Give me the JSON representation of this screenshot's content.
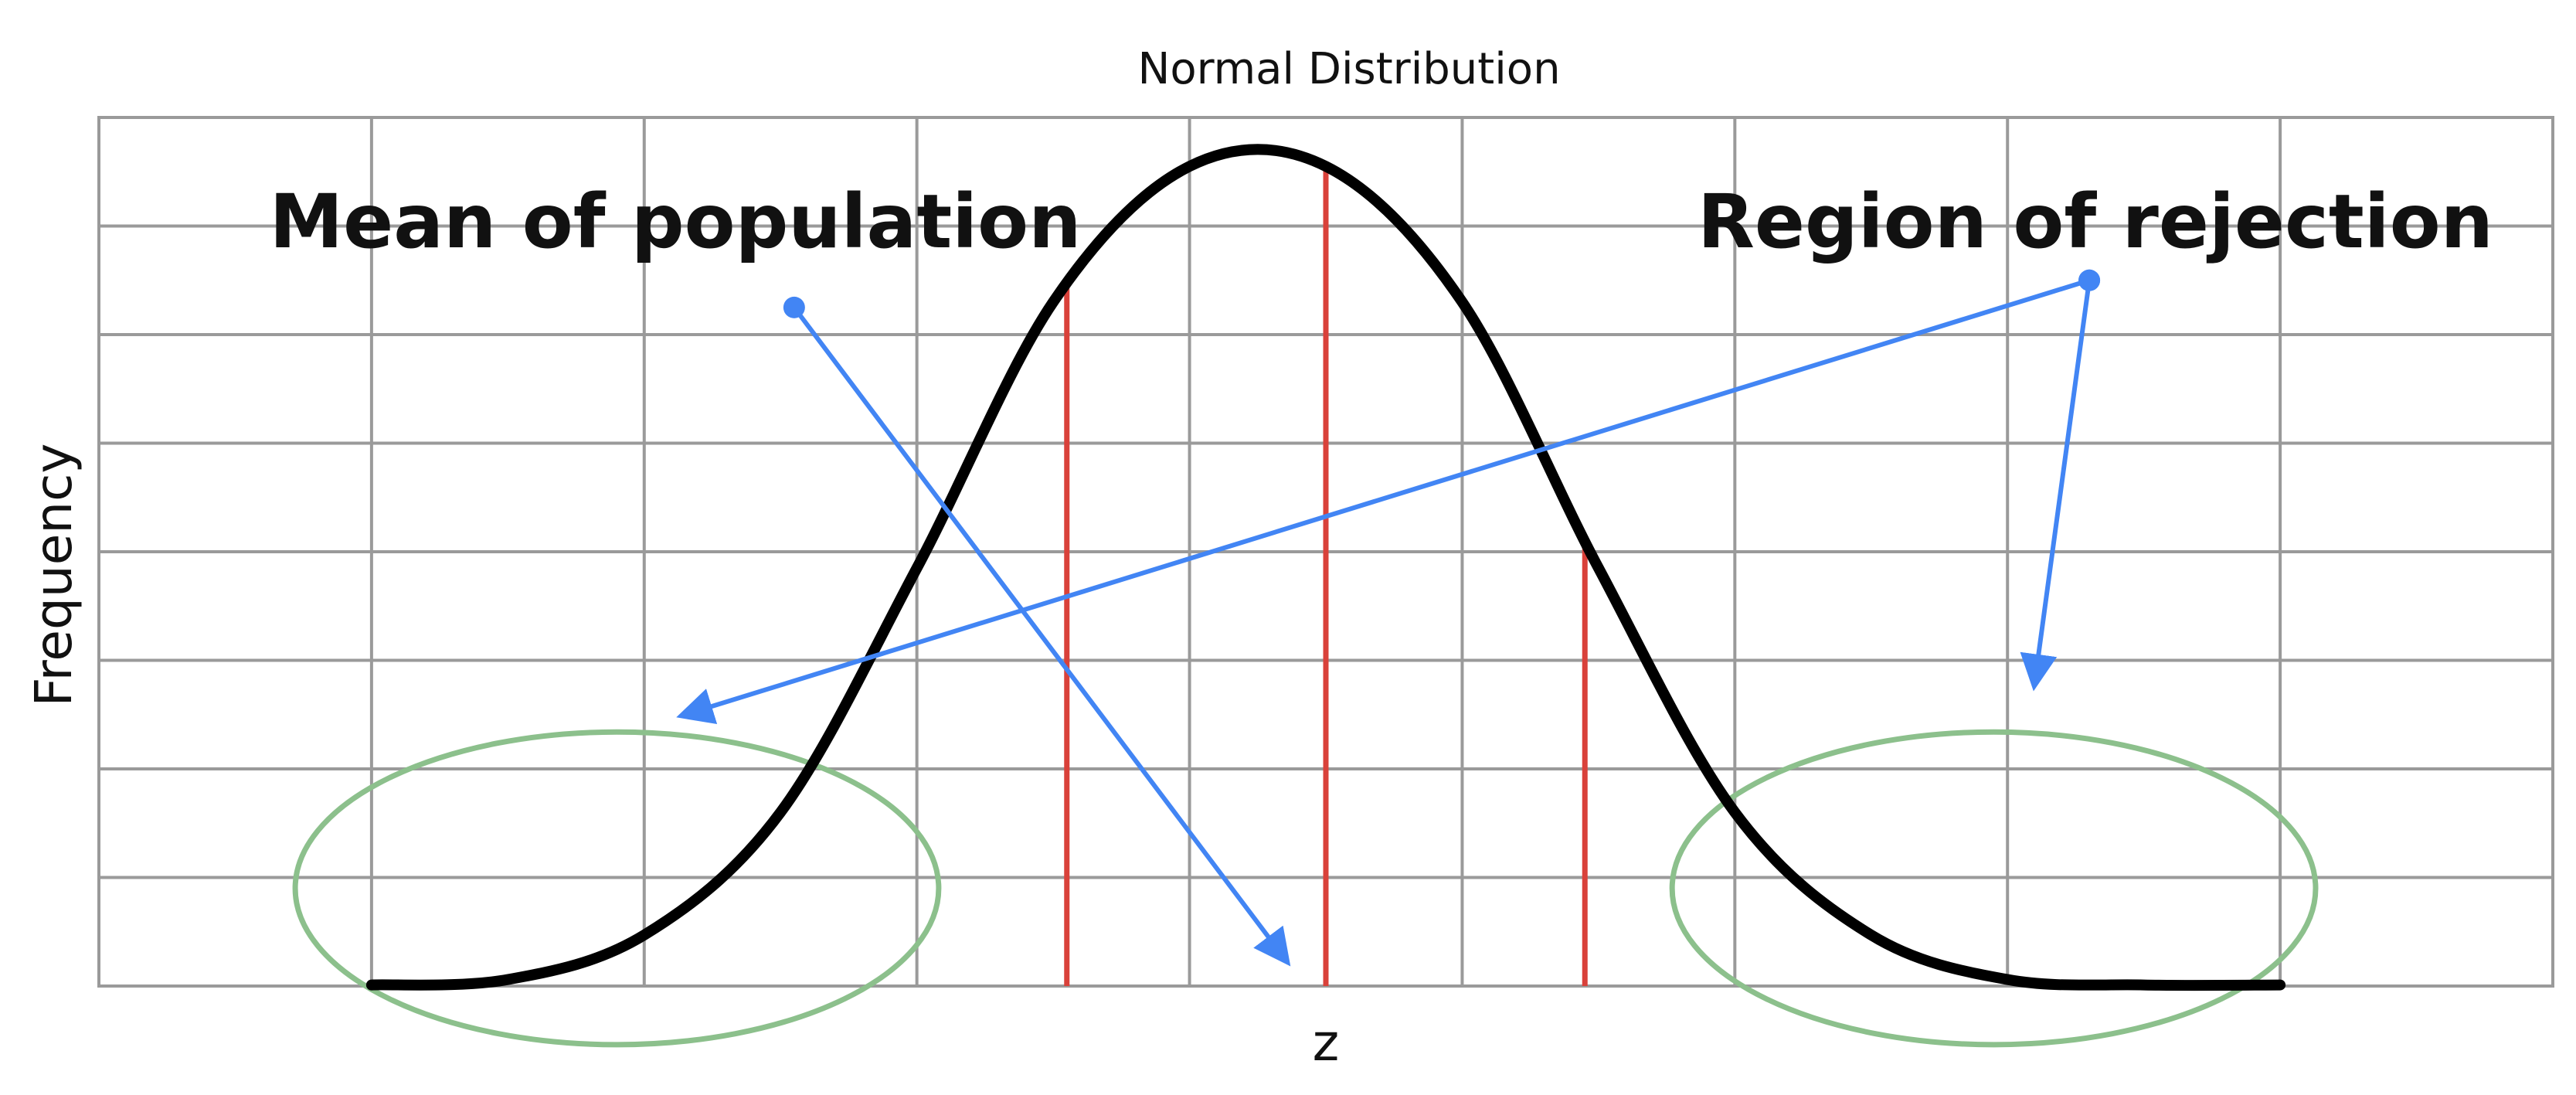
{
  "chart_data": {
    "type": "line",
    "title": "Normal Distribution",
    "xlabel": "z",
    "ylabel": "Frequency",
    "grid": true,
    "xlim": [
      -4.5,
      4.5
    ],
    "ylim": [
      0,
      8
    ],
    "colors": {
      "curve": "#000000",
      "grid": "#9a9a9a",
      "markers": "#d9413a",
      "arrows": "#4285f4",
      "regions": "#8cc08c"
    },
    "series": [
      {
        "x": [
          -3.5,
          -3.0,
          -2.5,
          -2.0,
          -1.5,
          -1.0,
          -0.5,
          0.0,
          0.5,
          1.0,
          1.5,
          2.0,
          2.5,
          3.0,
          3.5
        ],
        "values": [
          0.01,
          0.06,
          0.47,
          1.6,
          3.85,
          6.3,
          7.55,
          7.55,
          6.3,
          3.85,
          1.6,
          0.47,
          0.06,
          0.01,
          0.01
        ]
      }
    ],
    "vertical_lines": [
      {
        "x": -0.95
      },
      {
        "x": 0.0
      },
      {
        "x": 0.95
      }
    ],
    "annotations": [
      {
        "text": "Mean of population",
        "arrows": [
          {
            "from": [
              -1.95,
              6.25
            ],
            "to": [
              -0.15,
              0.25
            ]
          }
        ]
      },
      {
        "text": "Region of rejection",
        "arrows": [
          {
            "from": [
              2.8,
              6.5
            ],
            "to": [
              -2.35,
              2.5
            ]
          },
          {
            "from": [
              2.8,
              6.5
            ],
            "to": [
              2.6,
              2.8
            ]
          }
        ]
      }
    ],
    "regions": [
      {
        "center": [
          -2.6,
          0.9
        ],
        "radius": [
          1.18,
          1.44
        ]
      },
      {
        "center": [
          2.45,
          0.9
        ],
        "radius": [
          1.18,
          1.44
        ]
      }
    ]
  }
}
